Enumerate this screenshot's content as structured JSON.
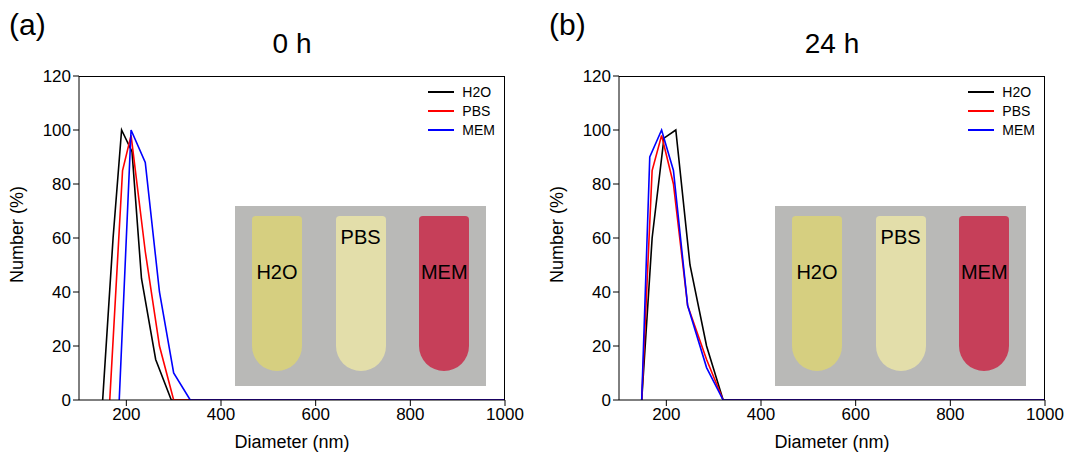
{
  "chart_data": [
    {
      "type": "line",
      "label": "(a)",
      "title": "0 h",
      "x_label": "Diameter (nm)",
      "y_label": "Number (%)",
      "xlim": [
        100,
        1000
      ],
      "xticks": [
        200,
        400,
        600,
        800,
        1000
      ],
      "ylim": [
        0,
        120
      ],
      "yticks": [
        0,
        20,
        40,
        60,
        80,
        100,
        120
      ],
      "grid": false,
      "legend": "top-right",
      "annotations": [
        "H2O",
        "PBS",
        "MEM"
      ],
      "series": [
        {
          "name": "H2O",
          "color": "#000000",
          "x": [
            150,
            172,
            190,
            212,
            232,
            262,
            295,
            1000
          ],
          "values": [
            0,
            60,
            100,
            92,
            45,
            15,
            0,
            0
          ]
        },
        {
          "name": "PBS",
          "color": "#ff0000",
          "x": [
            165,
            192,
            210,
            240,
            270,
            300,
            1000
          ],
          "values": [
            0,
            85,
            98,
            55,
            20,
            0,
            0
          ]
        },
        {
          "name": "MEM",
          "color": "#0000ff",
          "x": [
            185,
            210,
            240,
            270,
            300,
            335,
            1000
          ],
          "values": [
            0,
            100,
            88,
            40,
            10,
            0,
            0
          ]
        }
      ]
    },
    {
      "type": "line",
      "label": "(b)",
      "title": "24 h",
      "x_label": "Diameter (nm)",
      "y_label": "Number (%)",
      "xlim": [
        100,
        1000
      ],
      "xticks": [
        200,
        400,
        600,
        800,
        1000
      ],
      "ylim": [
        0,
        120
      ],
      "yticks": [
        0,
        20,
        40,
        60,
        80,
        100,
        120
      ],
      "grid": false,
      "legend": "top-right",
      "annotations": [
        "H2O",
        "PBS",
        "MEM"
      ],
      "series": [
        {
          "name": "H2O",
          "color": "#000000",
          "x": [
            148,
            170,
            195,
            220,
            250,
            285,
            320,
            1000
          ],
          "values": [
            0,
            60,
            97,
            100,
            50,
            20,
            0,
            0
          ]
        },
        {
          "name": "PBS",
          "color": "#ff0000",
          "x": [
            148,
            170,
            190,
            215,
            245,
            285,
            320,
            1000
          ],
          "values": [
            0,
            85,
            98,
            80,
            35,
            15,
            0,
            0
          ]
        },
        {
          "name": "MEM",
          "color": "#0000ff",
          "x": [
            148,
            165,
            190,
            215,
            245,
            285,
            320,
            1000
          ],
          "values": [
            0,
            90,
            100,
            85,
            35,
            12,
            0,
            0
          ]
        }
      ]
    }
  ]
}
